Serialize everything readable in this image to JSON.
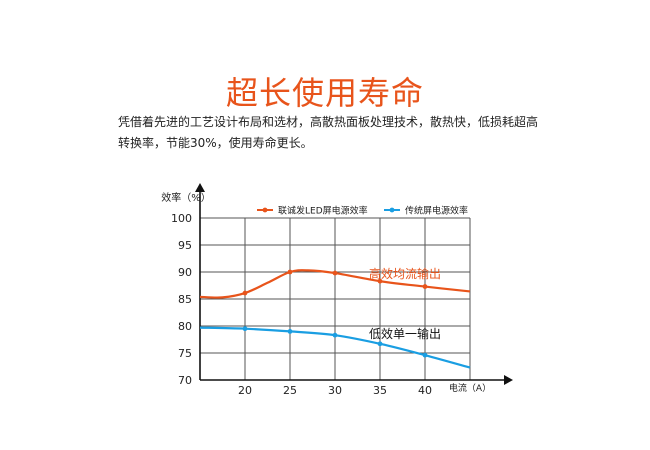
{
  "header": {
    "title": "超长使用寿命",
    "description": "凭借着先进的工艺设计布局和选材，高散热面板处理技术，散热快，低损耗超高转换率，节能30%，使用寿命更长。"
  },
  "chart_data": {
    "type": "line",
    "ylabel": "效率（%）",
    "xlabel": "电流（A）",
    "x_ticks": [
      20,
      25,
      30,
      35,
      40
    ],
    "y_ticks": [
      70,
      75,
      80,
      85,
      90,
      95,
      100
    ],
    "xlim": [
      15,
      45
    ],
    "ylim": [
      70,
      100
    ],
    "grid": true,
    "legend_position": "top",
    "series": [
      {
        "name": "联诚发LED屏电源效率",
        "color": "#e8541b",
        "annotation": "高效均流输出",
        "points": [
          [
            15,
            85.4
          ],
          [
            17.5,
            85.3
          ],
          [
            20,
            86.1
          ],
          [
            22.5,
            88.0
          ],
          [
            25,
            90.0
          ],
          [
            27,
            90.3
          ],
          [
            30,
            89.8
          ],
          [
            35,
            88.3
          ],
          [
            40,
            87.3
          ],
          [
            45,
            86.4
          ]
        ],
        "markers_x": [
          20,
          25,
          30,
          35,
          40
        ]
      },
      {
        "name": "传统屏电源效率",
        "color": "#1a9ee2",
        "annotation": "低效单一输出",
        "points": [
          [
            15,
            79.7
          ],
          [
            20,
            79.5
          ],
          [
            25,
            79.0
          ],
          [
            30,
            78.3
          ],
          [
            35,
            76.7
          ],
          [
            40,
            74.6
          ],
          [
            45,
            72.3
          ]
        ],
        "markers_x": [
          20,
          25,
          30,
          35,
          40
        ]
      }
    ]
  }
}
